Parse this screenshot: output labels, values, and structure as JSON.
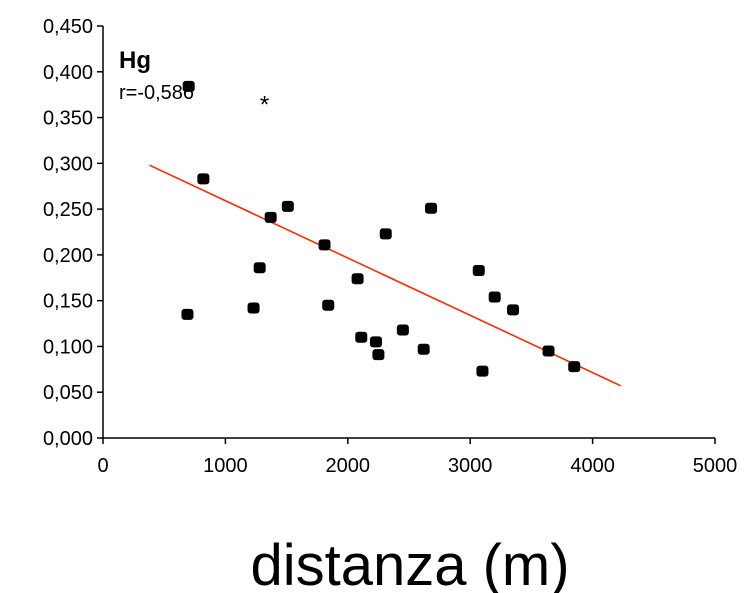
{
  "chart_data": {
    "type": "scatter",
    "title": "Hg",
    "annotation": "r=-0,586",
    "outlier_marker": "*",
    "outlier_point": {
      "x": 1320,
      "y": 0.371
    },
    "xlabel": "distanza (m)",
    "ylabel": "",
    "xlim": [
      0,
      5000
    ],
    "ylim": [
      0,
      0.45
    ],
    "x_ticks": [
      0,
      1000,
      2000,
      3000,
      4000,
      5000
    ],
    "x_tick_labels": [
      "0",
      "1000",
      "2000",
      "3000",
      "4000",
      "5000"
    ],
    "y_ticks": [
      0,
      0.05,
      0.1,
      0.15,
      0.2,
      0.25,
      0.3,
      0.35,
      0.4,
      0.45
    ],
    "y_tick_labels": [
      "0,000",
      "0,050",
      "0,100",
      "0,150",
      "0,200",
      "0,250",
      "0,300",
      "0,350",
      "0,400",
      "0,450"
    ],
    "grid": false,
    "series": [
      {
        "points": [
          {
            "x": 700,
            "y": 0.384
          },
          {
            "x": 690,
            "y": 0.135
          },
          {
            "x": 820,
            "y": 0.283
          },
          {
            "x": 1230,
            "y": 0.142
          },
          {
            "x": 1280,
            "y": 0.186
          },
          {
            "x": 1370,
            "y": 0.241
          },
          {
            "x": 1510,
            "y": 0.253
          },
          {
            "x": 1810,
            "y": 0.211
          },
          {
            "x": 1840,
            "y": 0.145
          },
          {
            "x": 2080,
            "y": 0.174
          },
          {
            "x": 2110,
            "y": 0.11
          },
          {
            "x": 2230,
            "y": 0.105
          },
          {
            "x": 2250,
            "y": 0.091
          },
          {
            "x": 2310,
            "y": 0.223
          },
          {
            "x": 2450,
            "y": 0.118
          },
          {
            "x": 2620,
            "y": 0.097
          },
          {
            "x": 2680,
            "y": 0.251
          },
          {
            "x": 3070,
            "y": 0.183
          },
          {
            "x": 3100,
            "y": 0.073
          },
          {
            "x": 3200,
            "y": 0.154
          },
          {
            "x": 3350,
            "y": 0.14
          },
          {
            "x": 3640,
            "y": 0.095
          },
          {
            "x": 3850,
            "y": 0.078
          }
        ],
        "color": "#000000"
      }
    ],
    "trendline": {
      "x": [
        380,
        4230
      ],
      "y": [
        0.298,
        0.057
      ],
      "color": "#ff2a00"
    }
  }
}
